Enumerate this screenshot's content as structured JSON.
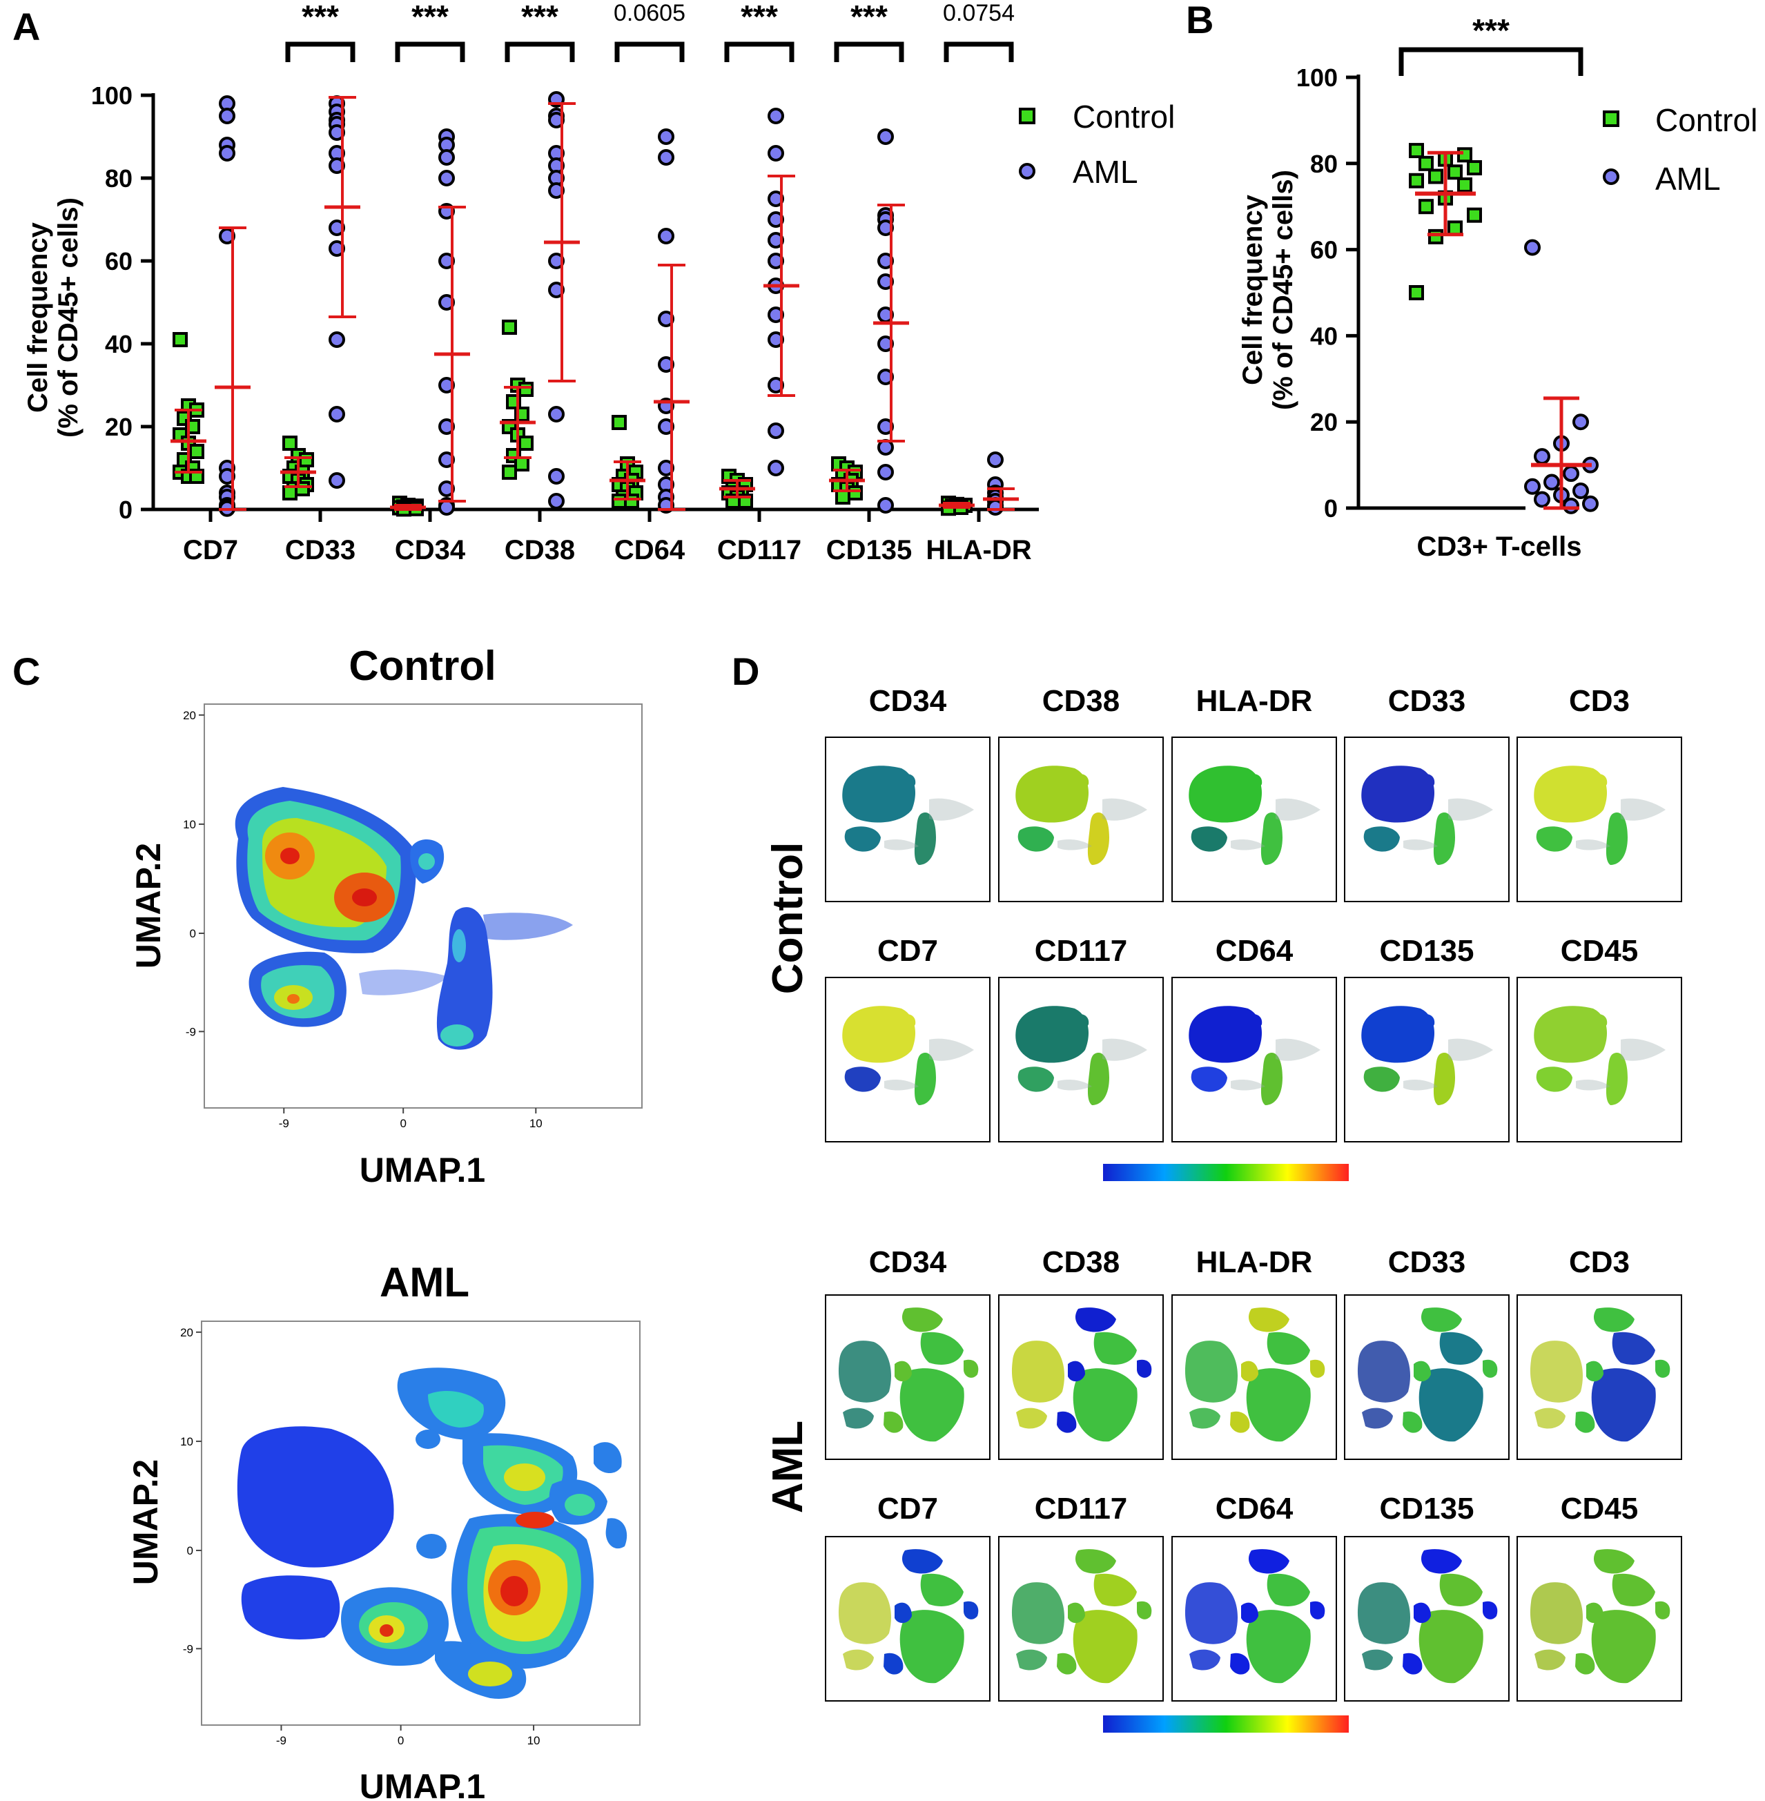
{
  "panels": {
    "A": {
      "letter": "A",
      "chart_data": {
        "type": "scatter",
        "title": "",
        "ylabel_line1": "Cell frequency",
        "ylabel_line2": "(% of CD45+ cells)",
        "ylim": [
          0,
          100
        ],
        "yticks": [
          "0",
          "20",
          "40",
          "60",
          "80",
          "100"
        ],
        "categories": [
          "CD7",
          "CD33",
          "CD34",
          "CD38",
          "CD64",
          "CD117",
          "CD135",
          "HLA-DR"
        ],
        "significance": [
          "",
          "***",
          "***",
          "***",
          "0.0605",
          "***",
          "***",
          "0.0754"
        ],
        "legend": [
          {
            "name": "Control",
            "color": "#3ddc1d",
            "marker": "square"
          },
          {
            "name": "AML",
            "color": "#7b7bf0",
            "marker": "circle"
          }
        ],
        "series": [
          {
            "name": "Control",
            "points": [
              [
                41,
                25,
                24,
                22,
                20,
                18,
                16,
                14,
                12,
                10,
                9,
                8,
                8
              ],
              [
                16,
                13,
                12,
                10,
                9,
                8,
                7,
                6,
                5,
                5,
                4
              ],
              [
                1.5,
                1,
                0.8,
                0.6,
                0.5,
                0.4,
                0.3,
                0.2,
                0.1
              ],
              [
                44,
                30,
                29,
                26,
                23,
                20,
                18,
                16,
                13,
                11,
                9
              ],
              [
                21,
                11,
                9,
                8,
                7,
                6,
                5,
                4,
                3,
                2,
                2
              ],
              [
                8,
                7,
                6,
                5,
                4,
                4,
                3,
                2,
                2
              ],
              [
                11,
                10,
                9,
                8,
                7,
                6,
                5,
                4,
                3
              ],
              [
                1.5,
                1.2,
                1,
                0.8,
                0.5,
                0.3
              ]
            ],
            "mean": [
              16.5,
              9,
              0.5,
              21,
              7,
              5,
              7,
              1
            ],
            "sd": [
              7.5,
              3.5,
              0.5,
              8.5,
              4.5,
              2,
              2.5,
              0.5
            ]
          },
          {
            "name": "AML",
            "points": [
              [
                98,
                95,
                88,
                86,
                66,
                10,
                8,
                4,
                3,
                1,
                0.5,
                0.2
              ],
              [
                98,
                96,
                94,
                93,
                91,
                86,
                83,
                68,
                63,
                41,
                23,
                7
              ],
              [
                90,
                88,
                85,
                80,
                72,
                60,
                50,
                30,
                20,
                12,
                5,
                1,
                0.5
              ],
              [
                99,
                95,
                94,
                86,
                83,
                80,
                77,
                60,
                53,
                23,
                8,
                2
              ],
              [
                90,
                85,
                66,
                46,
                35,
                25,
                20,
                10,
                6,
                3,
                1
              ],
              [
                95,
                86,
                75,
                70,
                65,
                60,
                54,
                47,
                41,
                30,
                19,
                10
              ],
              [
                90,
                71,
                70,
                68,
                60,
                55,
                47,
                40,
                32,
                20,
                15,
                9,
                1
              ],
              [
                12,
                6,
                4,
                3,
                2,
                1,
                0.5
              ]
            ],
            "mean": [
              29.5,
              73,
              37.5,
              64.5,
              26,
              54,
              45,
              2.5
            ],
            "sd": [
              38.5,
              26.5,
              35.5,
              33.5,
              33,
              26.5,
              28.5,
              2.5
            ]
          }
        ]
      }
    },
    "B": {
      "letter": "B",
      "chart_data": {
        "type": "scatter",
        "title": "",
        "ylabel_line1": "Cell frequency",
        "ylabel_line2": "(% of CD45+ cells)",
        "ylim": [
          0,
          100
        ],
        "yticks": [
          "0",
          "20",
          "40",
          "60",
          "80",
          "100"
        ],
        "xlabel": "CD3+ T-cells",
        "significance": "***",
        "legend": [
          {
            "name": "Control",
            "color": "#3ddc1d",
            "marker": "square"
          },
          {
            "name": "AML",
            "color": "#7b7bf0",
            "marker": "circle"
          }
        ],
        "series": [
          {
            "name": "Control",
            "values": [
              83,
              82,
              81,
              80,
              79,
              78,
              77,
              76,
              75,
              72,
              70,
              68,
              65,
              63,
              50
            ],
            "mean": 73,
            "sd": 9.5
          },
          {
            "name": "AML",
            "values": [
              60.5,
              20,
              15,
              12,
              10,
              8,
              6,
              5,
              4,
              3,
              2,
              1,
              0.5
            ],
            "mean": 10,
            "sd": 15.5
          }
        ]
      }
    },
    "C": {
      "letter": "C",
      "plots": [
        {
          "title": "Control",
          "xlabel": "UMAP.1",
          "ylabel": "UMAP.2",
          "xticks": [
            "-9",
            "0",
            "10"
          ],
          "yticks": [
            "20",
            "10",
            "0",
            "-9"
          ]
        },
        {
          "title": "AML",
          "xlabel": "UMAP.1",
          "ylabel": "UMAP.2",
          "xticks": [
            "-9",
            "0",
            "10"
          ],
          "yticks": [
            "20",
            "10",
            "0",
            "-9"
          ]
        }
      ]
    },
    "D": {
      "letter": "D",
      "groups": [
        {
          "label": "Control",
          "row1": [
            "CD34",
            "CD38",
            "HLA-DR",
            "CD33",
            "CD3"
          ],
          "row2": [
            "CD7",
            "CD117",
            "CD64",
            "CD135",
            "CD45"
          ]
        },
        {
          "label": "AML",
          "row1": [
            "CD34",
            "CD38",
            "HLA-DR",
            "CD33",
            "CD3"
          ],
          "row2": [
            "CD7",
            "CD117",
            "CD64",
            "CD135",
            "CD45"
          ]
        }
      ],
      "colorscale": [
        "#1020d0",
        "#00a0ff",
        "#10d010",
        "#ffff00",
        "#ff2020"
      ]
    }
  }
}
